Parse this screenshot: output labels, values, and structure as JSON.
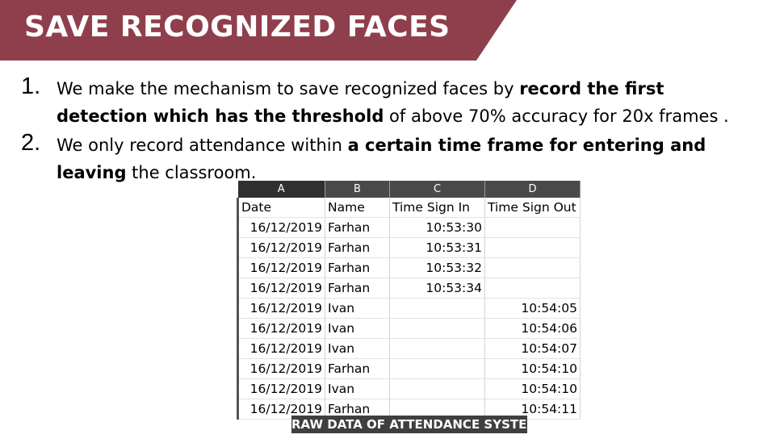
{
  "header": {
    "title": "SAVE RECOGNIZED FACES"
  },
  "points": [
    {
      "number": "1.",
      "pre": "We make the mechanism to save recognized faces by ",
      "bold": "record the first detection which has the threshold",
      "post": " of above 70% accuracy for 20x frames ."
    },
    {
      "number": "2.",
      "pre": "We only record attendance within ",
      "bold": "a certain time frame for entering and leaving",
      "post": " the classroom."
    }
  ],
  "sheet": {
    "column_letters": [
      "A",
      "B",
      "C",
      "D"
    ],
    "headers": [
      "Date",
      "Name",
      "Time Sign In",
      "Time Sign Out"
    ],
    "rows": [
      [
        "16/12/2019",
        "Farhan",
        "10:53:30",
        ""
      ],
      [
        "16/12/2019",
        "Farhan",
        "10:53:31",
        ""
      ],
      [
        "16/12/2019",
        "Farhan",
        "10:53:32",
        ""
      ],
      [
        "16/12/2019",
        "Farhan",
        "10:53:34",
        ""
      ],
      [
        "16/12/2019",
        "Ivan",
        "",
        "10:54:05"
      ],
      [
        "16/12/2019",
        "Ivan",
        "",
        "10:54:06"
      ],
      [
        "16/12/2019",
        "Ivan",
        "",
        "10:54:07"
      ],
      [
        "16/12/2019",
        "Farhan",
        "",
        "10:54:10"
      ],
      [
        "16/12/2019",
        "Ivan",
        "",
        "10:54:10"
      ],
      [
        "16/12/2019",
        "Farhan",
        "",
        "10:54:11"
      ]
    ],
    "caption": "RAW DATA OF ATTENDANCE SYSTEM"
  },
  "colors": {
    "banner": "#8f3f4b",
    "column_header": "#4a4a4a",
    "caption_bg": "#3f3f3f"
  }
}
